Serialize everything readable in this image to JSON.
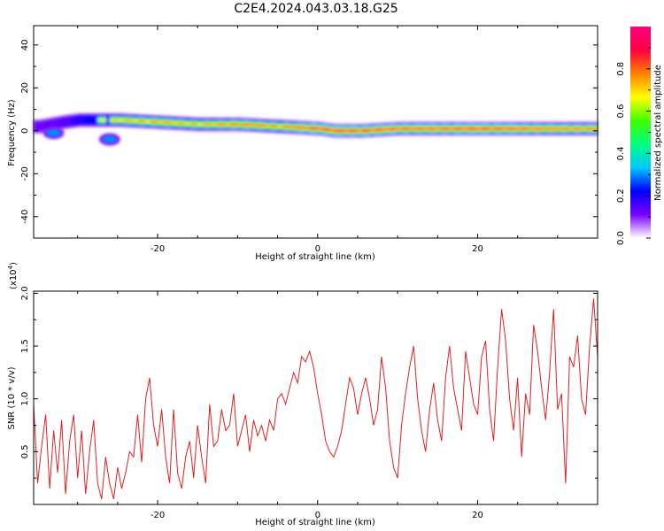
{
  "title": "C2E4.2024.043.03.18.G25",
  "colors": {
    "snr_line": "#e02020",
    "colorbar_stops": [
      "#ffffff",
      "#7a00ff",
      "#0000ff",
      "#00c8ff",
      "#00ff80",
      "#40ff00",
      "#ffff00",
      "#ff8000",
      "#ff0040",
      "#ff0080"
    ]
  },
  "chart_data": [
    {
      "type": "heatmap",
      "xlabel": "Height of straight line (km)",
      "ylabel": "Frequency (Hz)",
      "xlim": [
        -35.5,
        35
      ],
      "ylim": [
        -50,
        49
      ],
      "xticks": [
        -20,
        0,
        20
      ],
      "xtick_labels": [
        "-20",
        "0",
        "20"
      ],
      "yticks": [
        -40,
        -20,
        0,
        20,
        40
      ],
      "ytick_labels": [
        "-40",
        "-20",
        "0",
        "20",
        "40"
      ],
      "grid": false,
      "ridge": {
        "description_free": true,
        "x": [
          -35,
          -32,
          -30,
          -25,
          -20,
          -15,
          -10,
          -5,
          0,
          2,
          5,
          10,
          15,
          20,
          25,
          30,
          35
        ],
        "freq": [
          2,
          4,
          5,
          5,
          4,
          3,
          3,
          2,
          1,
          0,
          0,
          1,
          1,
          1,
          1,
          1,
          1
        ],
        "peak_amplitude": [
          0.35,
          0.4,
          0.55,
          0.75,
          0.8,
          0.75,
          0.85,
          0.8,
          0.95,
          0.95,
          0.95,
          0.9,
          0.9,
          0.95,
          0.9,
          0.85,
          0.85
        ]
      },
      "blobs": [
        {
          "x": -33,
          "freq": -1,
          "amplitude": 0.3
        },
        {
          "x": -26,
          "freq": -4,
          "amplitude": 0.3
        }
      ],
      "colorbar": {
        "label": "Normalized spectral amplitude",
        "range": [
          0,
          1
        ],
        "ticks": [
          0.0,
          0.2,
          0.4,
          0.6,
          0.8
        ],
        "tick_labels": [
          "0.0",
          "0.2",
          "0.4",
          "0.6",
          "0.8"
        ]
      }
    },
    {
      "type": "line",
      "xlabel": "Height of straight line (km)",
      "ylabel": "SNR (10 * v/v)",
      "y_multiplier": "(x10",
      "y_multiplier_exp": "4",
      "y_multiplier_close": ")",
      "xlim": [
        -35.5,
        35
      ],
      "ylim": [
        0,
        2.02
      ],
      "xticks": [
        -20,
        0,
        20
      ],
      "xtick_labels": [
        "-20",
        "0",
        "20"
      ],
      "yticks": [
        0.5,
        1.0,
        1.5,
        2.0
      ],
      "ytick_labels": [
        "0.5",
        "1.0",
        "1.5",
        "2.0"
      ],
      "grid": false,
      "series": [
        {
          "x": [
            -35.5,
            -35,
            -34.5,
            -34,
            -33.5,
            -33,
            -32.5,
            -32,
            -31.5,
            -31,
            -30.5,
            -30,
            -29.5,
            -29,
            -28.5,
            -28,
            -27.5,
            -27,
            -26.5,
            -26,
            -25.5,
            -25,
            -24.5,
            -24,
            -23.5,
            -23,
            -22.5,
            -22,
            -21.5,
            -21,
            -20.5,
            -20,
            -19.5,
            -19,
            -18.5,
            -18,
            -17.5,
            -17,
            -16.5,
            -16,
            -15.5,
            -15,
            -14.5,
            -14,
            -13.5,
            -13,
            -12.5,
            -12,
            -11.5,
            -11,
            -10.5,
            -10,
            -9.5,
            -9,
            -8.5,
            -8,
            -7.5,
            -7,
            -6.5,
            -6,
            -5.5,
            -5,
            -4.5,
            -4,
            -3.5,
            -3,
            -2.5,
            -2,
            -1.5,
            -1,
            -0.5,
            0,
            0.5,
            1,
            1.5,
            2,
            2.5,
            3,
            3.5,
            4,
            4.5,
            5,
            5.5,
            6,
            6.5,
            7,
            7.5,
            8,
            8.5,
            9,
            9.5,
            10,
            10.5,
            11,
            11.5,
            12,
            12.5,
            13,
            13.5,
            14,
            14.5,
            15,
            15.5,
            16,
            16.5,
            17,
            17.5,
            18,
            18.5,
            19,
            19.5,
            20,
            20.5,
            21,
            21.5,
            22,
            22.5,
            23,
            23.5,
            24,
            24.5,
            25,
            25.5,
            26,
            26.5,
            27,
            27.5,
            28,
            28.5,
            29,
            29.5,
            30,
            30.5,
            31,
            31.5,
            32,
            32.5,
            33,
            33.5,
            34,
            34.5,
            35
          ],
          "y": [
            0.95,
            0.2,
            0.55,
            0.85,
            0.15,
            0.7,
            0.3,
            0.8,
            0.1,
            0.6,
            0.85,
            0.25,
            0.7,
            0.1,
            0.5,
            0.8,
            0.2,
            0.05,
            0.45,
            0.2,
            0.05,
            0.35,
            0.15,
            0.3,
            0.5,
            0.45,
            0.85,
            0.4,
            1.0,
            1.2,
            0.75,
            0.55,
            0.9,
            0.45,
            0.2,
            0.9,
            0.3,
            0.15,
            0.45,
            0.6,
            0.25,
            0.75,
            0.45,
            0.2,
            0.95,
            0.55,
            0.6,
            0.9,
            0.7,
            0.75,
            1.05,
            0.55,
            0.7,
            0.85,
            0.5,
            0.8,
            0.65,
            0.75,
            0.6,
            0.8,
            0.7,
            1.0,
            1.05,
            0.95,
            1.1,
            1.25,
            1.15,
            1.4,
            1.35,
            1.45,
            1.3,
            1.05,
            0.85,
            0.6,
            0.5,
            0.45,
            0.55,
            0.7,
            0.95,
            1.2,
            1.1,
            0.85,
            1.05,
            1.2,
            1.0,
            0.75,
            0.9,
            1.4,
            1.1,
            0.6,
            0.35,
            0.25,
            0.75,
            1.05,
            1.3,
            1.5,
            1.0,
            0.7,
            0.5,
            0.9,
            1.15,
            0.8,
            0.6,
            1.2,
            1.5,
            1.1,
            0.9,
            0.7,
            1.45,
            1.2,
            0.95,
            0.85,
            1.4,
            1.55,
            0.9,
            0.6,
            1.3,
            1.85,
            1.55,
            1.0,
            0.7,
            1.2,
            0.45,
            1.05,
            0.85,
            1.7,
            1.45,
            1.1,
            0.8,
            1.25,
            1.85,
            0.9,
            1.05,
            0.2,
            1.4,
            1.3,
            1.6,
            1.0,
            0.85,
            1.5,
            1.95,
            1.4
          ]
        }
      ]
    }
  ]
}
